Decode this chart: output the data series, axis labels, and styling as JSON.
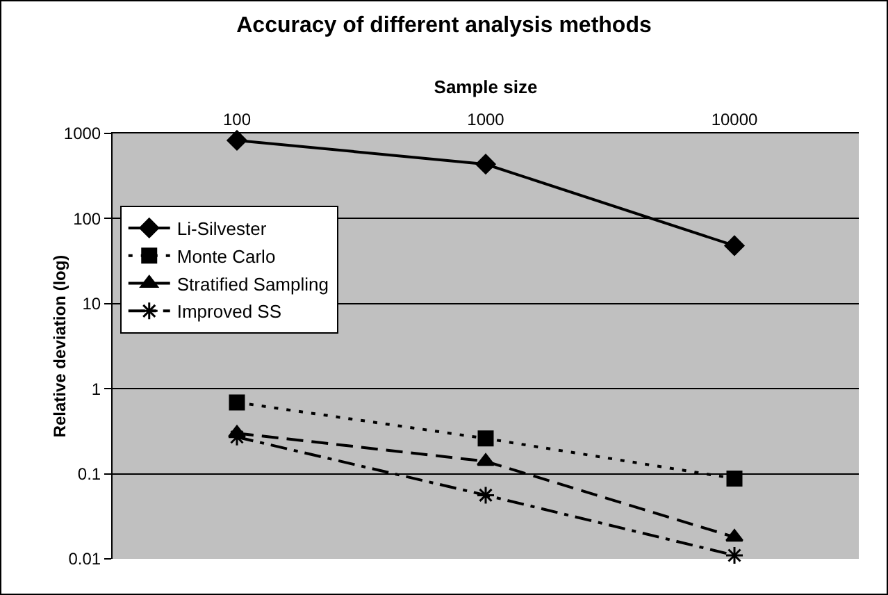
{
  "chart_data": {
    "type": "line",
    "title": "Accuracy of different analysis methods",
    "xlabel": "Sample size",
    "ylabel": "Relative deviation (log)",
    "categories": [
      "100",
      "1000",
      "10000"
    ],
    "series": [
      {
        "name": "Li-Silvester",
        "color": "#000000",
        "values": [
          830,
          435,
          48
        ],
        "marker": "diamond",
        "line_style": "solid"
      },
      {
        "name": "Monte Carlo",
        "color": "#000000",
        "values": [
          0.69,
          0.26,
          0.088
        ],
        "marker": "square",
        "line_style": "dotted"
      },
      {
        "name": "Stratified Sampling",
        "color": "#000000",
        "values": [
          0.3,
          0.14,
          0.018
        ],
        "marker": "triangle",
        "line_style": "dashed"
      },
      {
        "name": "Improved SS",
        "color": "#000000",
        "values": [
          0.27,
          0.056,
          0.011
        ],
        "marker": "cross",
        "line_style": "dashdot"
      }
    ],
    "log": "y",
    "ylim": [
      0.01,
      1000
    ],
    "yticks": [
      0.01,
      0.1,
      1,
      10,
      100,
      1000
    ],
    "grid": "y",
    "legend": "top left"
  }
}
